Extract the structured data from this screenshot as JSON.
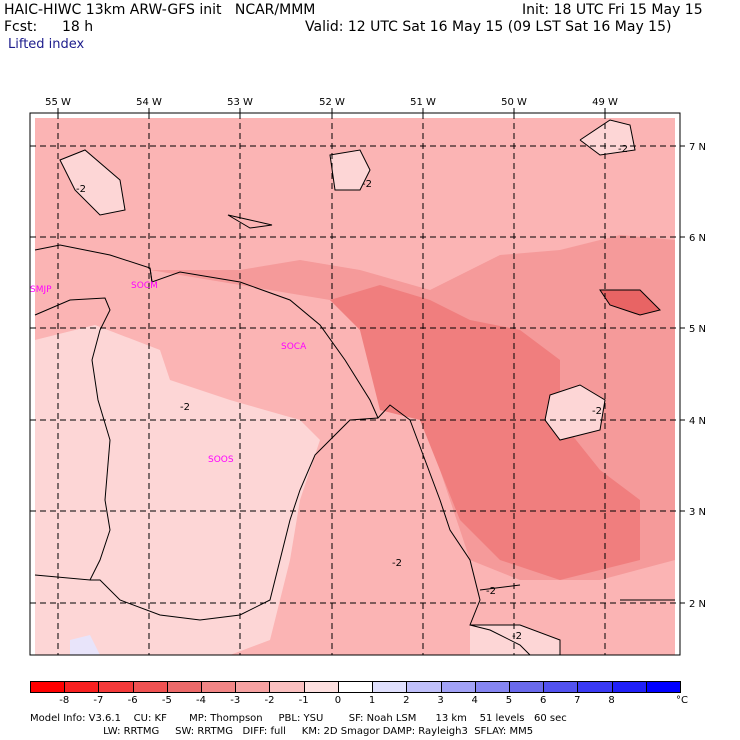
{
  "header": {
    "model_line": "HAIC-HIWC 13km ARW-GFS init   NCAR/MMM",
    "init_line": "Init: 18 UTC Fri 15 May 15",
    "fcst_label": "Fcst:",
    "fcst_value": "18 h",
    "valid_line": "Valid: 12 UTC Sat 16 May 15 (09 LST Sat 16 May 15)",
    "field_name": "Lifted index"
  },
  "map": {
    "lon_labels": [
      "55 W",
      "54 W",
      "53 W",
      "52 W",
      "51 W",
      "50 W",
      "49 W"
    ],
    "lat_labels": [
      "7 N",
      "6 N",
      "5 N",
      "4 N",
      "3 N",
      "2 N"
    ],
    "stations": [
      "SMJP",
      "SOCM",
      "SOCA",
      "SOOS"
    ],
    "contour_labels": [
      "-2",
      "-2",
      "-2",
      "-2",
      "-2",
      "-2",
      "-2",
      "-2"
    ],
    "colors": {
      "very_light": "#fdd6d6",
      "light": "#fbb4b4",
      "medium": "#f59a9a",
      "dark": "#f07e7e",
      "darker": "#e86464",
      "coast": "#000000",
      "station": "#ff00ff"
    }
  },
  "colorbar": {
    "ticks": [
      "-8",
      "-7",
      "-6",
      "-5",
      "-4",
      "-3",
      "-2",
      "-1",
      "0",
      "1",
      "2",
      "3",
      "4",
      "5",
      "6",
      "7",
      "8"
    ],
    "unit": "°C",
    "colors": [
      "#ff0000",
      "#f82020",
      "#f43a3a",
      "#f05252",
      "#ec6a6a",
      "#f28686",
      "#f6a2a2",
      "#fac0c0",
      "#fde0e0",
      "#ffffff",
      "#e0e0fd",
      "#c0c0fa",
      "#a2a2f6",
      "#8686f2",
      "#6a6aec",
      "#5252f0",
      "#3a3af4",
      "#2020f8",
      "#0000ff"
    ]
  },
  "footer": {
    "line1": "Model Info: V3.6.1    CU: KF       MP: Thompson     PBL: YSU        SF: Noah LSM      13 km    51 levels   60 sec",
    "line2": "                       LW: RRTMG     SW: RRTMG   DIFF: full     KM: 2D Smagor DAMP: Rayleigh3  SFLAY: MM5"
  }
}
